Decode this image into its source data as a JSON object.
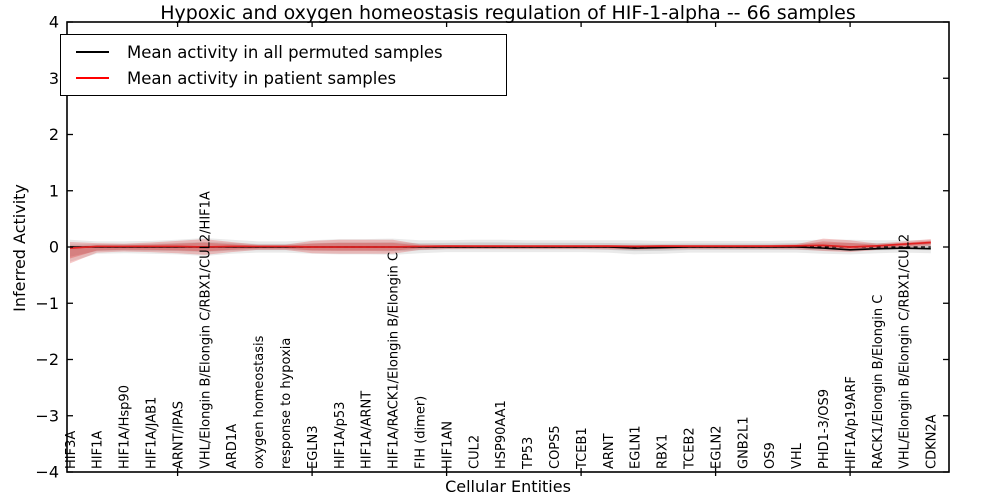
{
  "chart_data": {
    "type": "line",
    "title": "Hypoxic and oxygen homeostasis regulation of HIF-1-alpha -- 66 samples",
    "xlabel": "Cellular Entities",
    "ylabel": "Inferred Activity",
    "ylim": [
      -4,
      4
    ],
    "grid": "off",
    "yticks": [
      "4",
      "3",
      "2",
      "1",
      "0",
      "−1",
      "−2",
      "−3",
      "−4"
    ],
    "ytick_values": [
      4,
      3,
      2,
      1,
      0,
      -1,
      -2,
      -3,
      -4
    ],
    "xtick_indices": [
      4,
      9,
      14,
      19,
      24,
      29
    ],
    "categories": [
      "HIF3A",
      "HIF1A",
      "HIF1A/Hsp90",
      "HIF1A/JAB1",
      "ARNT/IPAS",
      "VHL/Elongin B/Elongin C/RBX1/CUL2/HIF1A",
      "ARD1A",
      "oxygen homeostasis",
      "response to hypoxia",
      "EGLN3",
      "HIF1A/p53",
      "HIF1A/ARNT",
      "HIF1A/RACK1/Elongin B/Elongin C",
      "FIH (dimer)",
      "HIF1AN",
      "CUL2",
      "HSP90AA1",
      "TP53",
      "COPS5",
      "TCEB1",
      "ARNT",
      "EGLN1",
      "RBX1",
      "TCEB2",
      "EGLN2",
      "GNB2L1",
      "OS9",
      "VHL",
      "PHD1-3/OS9",
      "HIF1A/p19ARF",
      "RACK1/Elongin B/Elongin C",
      "VHL/Elongin B/Elongin C/RBX1/CUL2",
      "CDKN2A"
    ],
    "series": [
      {
        "name": "Mean activity in all permuted samples",
        "color": "#000000",
        "style": "solid",
        "width": 1.6,
        "values": [
          0,
          0,
          0,
          0,
          0,
          0,
          0,
          0,
          0,
          0,
          0,
          0,
          0,
          0,
          0,
          0,
          0,
          0,
          0,
          0,
          0,
          -0.02,
          -0.01,
          0,
          0,
          0,
          0,
          0,
          -0.02,
          -0.05,
          -0.03,
          -0.02,
          -0.03
        ]
      },
      {
        "name": "Mean activity in patient samples",
        "color": "#e02020",
        "style": "solid",
        "width": 1.7,
        "values": [
          -0.02,
          0.01,
          0.01,
          0.01,
          0.01,
          0,
          0.01,
          0.01,
          0.01,
          0,
          0,
          0,
          0,
          0.01,
          0.015,
          0.015,
          0.015,
          0.015,
          0.015,
          0.015,
          0.015,
          0.01,
          0.015,
          0.015,
          0.015,
          0.015,
          0.015,
          0.02,
          0.03,
          0,
          0.02,
          0.05,
          0.08
        ]
      }
    ],
    "zero_line": {
      "value": 0,
      "color": "#000000",
      "style": "dashed"
    },
    "bands": [
      {
        "name": "permuted-samples-std",
        "color": "#888888",
        "outer_opacity": 0.18,
        "inner_opacity": 0.26,
        "top": [
          0.13,
          0.1,
          0.1,
          0.11,
          0.13,
          0.16,
          0.13,
          0.1,
          0.1,
          0.12,
          0.14,
          0.14,
          0.15,
          0.12,
          0.12,
          0.13,
          0.13,
          0.12,
          0.12,
          0.12,
          0.12,
          0.12,
          0.11,
          0.11,
          0.11,
          0.11,
          0.11,
          0.12,
          0.13,
          0.13,
          0.12,
          0.12,
          0.13
        ],
        "bottom": [
          -0.26,
          -0.12,
          -0.11,
          -0.12,
          -0.13,
          -0.16,
          -0.12,
          -0.1,
          -0.1,
          -0.12,
          -0.13,
          -0.13,
          -0.14,
          -0.11,
          -0.09,
          -0.09,
          -0.09,
          -0.09,
          -0.09,
          -0.09,
          -0.1,
          -0.13,
          -0.12,
          -0.1,
          -0.1,
          -0.1,
          -0.1,
          -0.1,
          -0.12,
          -0.13,
          -0.11,
          -0.1,
          -0.11
        ]
      },
      {
        "name": "patient-samples-std",
        "color": "#dd2a2a",
        "outer_opacity": 0.26,
        "inner_opacity": 0.3,
        "top": [
          0.09,
          0.07,
          0.06,
          0.08,
          0.11,
          0.14,
          0.09,
          0.04,
          0.04,
          0.11,
          0.13,
          0.13,
          0.13,
          0.05,
          0.035,
          0.03,
          0.03,
          0.03,
          0.03,
          0.03,
          0.035,
          0.035,
          0.035,
          0.03,
          0.03,
          0.03,
          0.035,
          0.05,
          0.15,
          0.12,
          0.06,
          0.1,
          0.14
        ],
        "bottom": [
          -0.29,
          -0.1,
          -0.08,
          -0.09,
          -0.11,
          -0.14,
          -0.09,
          -0.05,
          -0.05,
          -0.11,
          -0.12,
          -0.12,
          -0.12,
          -0.05,
          -0.035,
          -0.035,
          -0.035,
          -0.035,
          -0.035,
          -0.035,
          -0.04,
          -0.05,
          -0.04,
          -0.035,
          -0.035,
          -0.035,
          -0.035,
          -0.04,
          -0.07,
          -0.09,
          -0.05,
          -0.01,
          0.02
        ]
      }
    ],
    "legend": {
      "position": "upper left",
      "items": [
        {
          "label": "Mean activity in all permuted samples",
          "color": "#000000"
        },
        {
          "label": "Mean activity in patient samples",
          "color": "#ff0000"
        }
      ]
    }
  }
}
